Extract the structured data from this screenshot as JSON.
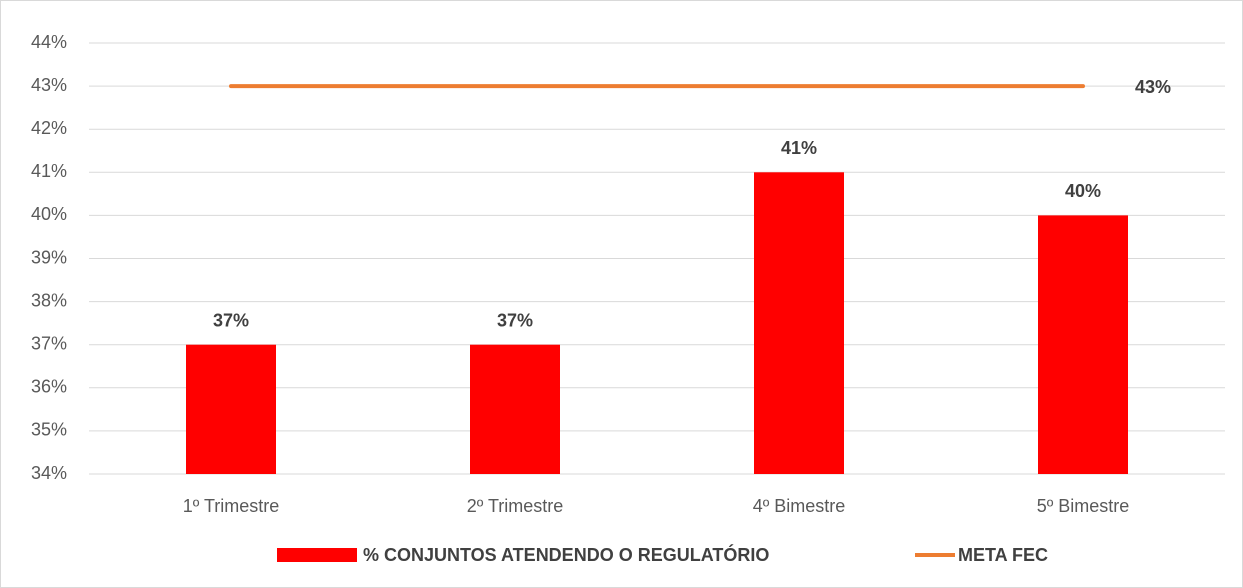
{
  "chart_data": {
    "type": "bar",
    "categories": [
      "1º Trimestre",
      "2º Trimestre",
      "4º Bimestre",
      "5º Bimestre"
    ],
    "series": [
      {
        "name": "% CONJUNTOS ATENDENDO O REGULATÓRIO",
        "type": "bar",
        "color": "#ff0000",
        "values": [
          37,
          37,
          41,
          40
        ],
        "value_labels": [
          "37%",
          "37%",
          "41%",
          "40%"
        ]
      },
      {
        "name": "META FEC",
        "type": "line",
        "color": "#ed7d31",
        "values": [
          43,
          43,
          43,
          43
        ],
        "value_labels": [
          null,
          null,
          null,
          "43%"
        ]
      }
    ],
    "ylim": [
      34,
      44
    ],
    "yticks": [
      {
        "value": 34,
        "label": "34%"
      },
      {
        "value": 35,
        "label": "35%"
      },
      {
        "value": 36,
        "label": "36%"
      },
      {
        "value": 37,
        "label": "37%"
      },
      {
        "value": 38,
        "label": "38%"
      },
      {
        "value": 39,
        "label": "39%"
      },
      {
        "value": 40,
        "label": "40%"
      },
      {
        "value": 41,
        "label": "41%"
      },
      {
        "value": 42,
        "label": "42%"
      },
      {
        "value": 43,
        "label": "43%"
      },
      {
        "value": 44,
        "label": "44%"
      }
    ],
    "grid": true,
    "legend": "bottom"
  }
}
